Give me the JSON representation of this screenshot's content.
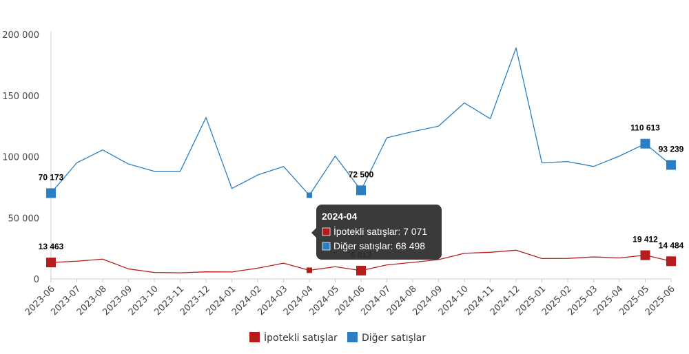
{
  "chart_data": {
    "type": "line",
    "categories": [
      "2023-06",
      "2023-07",
      "2023-08",
      "2023-09",
      "2023-10",
      "2023-11",
      "2023-12",
      "2024-01",
      "2024-02",
      "2024-03",
      "2024-04",
      "2024-05",
      "2024-06",
      "2024-07",
      "2024-08",
      "2024-09",
      "2024-10",
      "2024-11",
      "2024-12",
      "2025-01",
      "2025-02",
      "2025-03",
      "2025-04",
      "2025-05",
      "2025-06"
    ],
    "ylim": [
      0,
      200000
    ],
    "y_ticks": [
      0,
      50000,
      100000,
      150000,
      200000
    ],
    "y_tick_labels": [
      "0",
      "50 000",
      "100 000",
      "150 000",
      "200 000"
    ],
    "grid": false,
    "legend_position": "bottom",
    "series": [
      {
        "name": "İpotekli satışlar",
        "color": "#b71c1c",
        "values": [
          13463,
          14500,
          16200,
          8200,
          5300,
          5000,
          5800,
          5700,
          8800,
          12900,
          7071,
          10000,
          6813,
          11500,
          13500,
          15800,
          21000,
          21800,
          23500,
          16700,
          16800,
          18000,
          17200,
          19412,
          14484
        ],
        "labels": [
          {
            "index": 0,
            "text": "13 463"
          },
          {
            "index": 12,
            "text": "6 813"
          },
          {
            "index": 23,
            "text": "19 412"
          },
          {
            "index": 24,
            "text": "14 484"
          }
        ]
      },
      {
        "name": "Diğer satışlar",
        "color": "#2a7fc4",
        "values": [
          70173,
          95000,
          105500,
          94000,
          88000,
          88000,
          132000,
          74000,
          85000,
          92000,
          68498,
          100500,
          72500,
          115500,
          120500,
          125000,
          144000,
          131000,
          189000,
          95000,
          96000,
          92000,
          100500,
          110613,
          93239
        ],
        "labels": [
          {
            "index": 0,
            "text": "70 173"
          },
          {
            "index": 12,
            "text": "72 500"
          },
          {
            "index": 23,
            "text": "110 613"
          },
          {
            "index": 24,
            "text": "93 239"
          }
        ]
      }
    ],
    "tooltip": {
      "title": "2024-04",
      "rows": [
        {
          "label": "İpotekli satışlar: 7 071",
          "color": "#b71c1c"
        },
        {
          "label": "Diğer satışlar: 68 498",
          "color": "#2a7fc4"
        }
      ]
    }
  }
}
